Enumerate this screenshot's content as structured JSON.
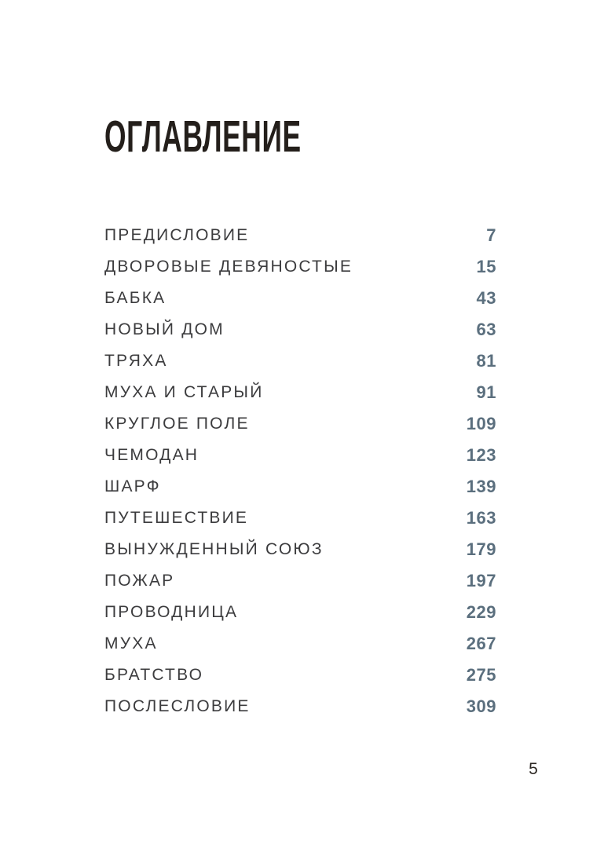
{
  "page": {
    "title": "ОГЛАВЛЕНИЕ",
    "folio_number": "5"
  },
  "toc": {
    "entries": [
      {
        "title": "ПРЕДИСЛОВИЕ",
        "page": "7"
      },
      {
        "title": "ДВОРОВЫЕ ДЕВЯНОСТЫЕ",
        "page": "15"
      },
      {
        "title": "БАБКА",
        "page": "43"
      },
      {
        "title": "НОВЫЙ ДОМ",
        "page": "63"
      },
      {
        "title": "ТРЯХА",
        "page": "81"
      },
      {
        "title": "МУХА И СТАРЫЙ",
        "page": "91"
      },
      {
        "title": "КРУГЛОЕ ПОЛЕ",
        "page": "109"
      },
      {
        "title": "ЧЕМОДАН",
        "page": "123"
      },
      {
        "title": "ШАРФ",
        "page": "139"
      },
      {
        "title": "ПУТЕШЕСТВИЕ",
        "page": "163"
      },
      {
        "title": "ВЫНУЖДЕННЫЙ СОЮЗ",
        "page": "179"
      },
      {
        "title": "ПОЖАР",
        "page": "197"
      },
      {
        "title": "ПРОВОДНИЦА",
        "page": "229"
      },
      {
        "title": "МУХА",
        "page": "267"
      },
      {
        "title": "БРАТСТВО",
        "page": "275"
      },
      {
        "title": "ПОСЛЕСЛОВИЕ",
        "page": "309"
      }
    ]
  },
  "colors": {
    "background": "#ffffff",
    "title": "#241f1b",
    "entry_text": "#3c3c3e",
    "page_number_accent": "#5b6f7e",
    "folio": "#2c2723"
  }
}
